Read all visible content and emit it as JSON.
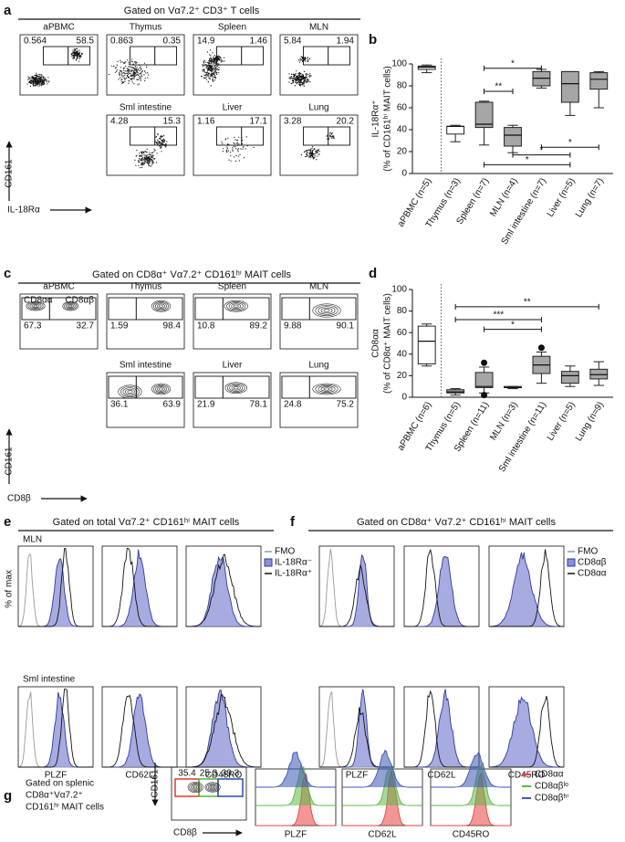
{
  "panel_labels": [
    "a",
    "b",
    "c",
    "d",
    "e",
    "f",
    "g"
  ],
  "a": {
    "title": "Gated on Vα7.2⁺ CD3⁺ T cells",
    "y_axis": "CD161",
    "x_axis": "IL-18Rα",
    "plots": [
      {
        "name": "aPBMC",
        "gates": [
          "0.564",
          "58.5"
        ]
      },
      {
        "name": "Thymus",
        "gates": [
          "0.863",
          "0.35"
        ]
      },
      {
        "name": "Spleen",
        "gates": [
          "14.9",
          "1.46"
        ]
      },
      {
        "name": "MLN",
        "gates": [
          "5.84",
          "1.94"
        ]
      },
      {
        "name": "Sml intestine",
        "gates": [
          "4.28",
          "15.3"
        ]
      },
      {
        "name": "Liver",
        "gates": [
          "1.16",
          "17.1"
        ]
      },
      {
        "name": "Lung",
        "gates": [
          "3.28",
          "20.2"
        ]
      }
    ]
  },
  "c": {
    "title": "Gated on CD8α⁺ Vα7.2⁺ CD161ʰⁱ MAIT cells",
    "y_axis": "CD161",
    "x_axis": "CD8β",
    "subsets": [
      "CD8αα",
      "CD8αβ"
    ],
    "plots": [
      {
        "name": "aPBMC",
        "gates": [
          "67.3",
          "32.7"
        ]
      },
      {
        "name": "Thymus",
        "gates": [
          "1.59",
          "98.4"
        ]
      },
      {
        "name": "Spleen",
        "gates": [
          "10.8",
          "89.2"
        ]
      },
      {
        "name": "MLN",
        "gates": [
          "9.88",
          "90.1"
        ]
      },
      {
        "name": "Sml intestine",
        "gates": [
          "36.1",
          "63.9"
        ]
      },
      {
        "name": "Liver",
        "gates": [
          "21.9",
          "78.1"
        ]
      },
      {
        "name": "Lung",
        "gates": [
          "24.8",
          "75.2"
        ]
      }
    ]
  },
  "e": {
    "title": "Gated on total Vα7.2⁺ CD161ʰⁱ MAIT cells",
    "rows": [
      "MLN",
      "Sml intestine"
    ],
    "y_axis": "% of max",
    "markers": [
      "PLZF",
      "CD62L",
      "CD45RO"
    ],
    "legend": [
      "FMO",
      "IL-18Rα⁻",
      "IL-18Rα⁺"
    ]
  },
  "f": {
    "title": "Gated on CD8α⁺ Vα7.2⁺ CD161ʰⁱ MAIT cells",
    "markers": [
      "PLZF",
      "CD62L",
      "CD45RO"
    ],
    "legend": [
      "FMO",
      "CD8αβ",
      "CD8αα"
    ]
  },
  "g": {
    "title_lines": [
      "Gated on splenic",
      "CD8α⁺Vα7.2⁺",
      "CD161ʰⁱ MAIT cells"
    ],
    "gates": [
      "35.4",
      "25.3",
      "39.3"
    ],
    "y_axis": "CD161",
    "x_axis": "CD8β",
    "markers": [
      "PLZF",
      "CD62L",
      "CD45RO"
    ],
    "legend": [
      "CD8αα",
      "CD8αβˡᵒ",
      "CD8αβʰⁱ"
    ],
    "legend_colors": [
      "#e8423f",
      "#5bb947",
      "#3a56b0"
    ]
  },
  "chart_data": [
    {
      "type": "box",
      "ylabel": [
        "IL-18Rα⁺",
        "(% of CD161ʰⁱ MAIT cells)"
      ],
      "categories": [
        "aPBMC (n=5)",
        "Thymus (n=3)",
        "Spleen (n=7)",
        "MLN (n=4)",
        "Sml intestine (n=7)",
        "Liver (n=5)",
        "Lung (n=7)"
      ],
      "fills": [
        "#ffffff",
        "#ffffff",
        "#a6a6a6",
        "#a6a6a6",
        "#a6a6a6",
        "#a6a6a6",
        "#a6a6a6"
      ],
      "boxes": [
        {
          "min": 92,
          "q1": 95,
          "median": 97,
          "q3": 98,
          "max": 99
        },
        {
          "min": 29,
          "q1": 36,
          "median": 43,
          "q3": 43,
          "max": 44
        },
        {
          "min": 26,
          "q1": 42,
          "median": 45,
          "q3": 65,
          "max": 66
        },
        {
          "min": 19,
          "q1": 25,
          "median": 35,
          "q3": 42,
          "max": 44
        },
        {
          "min": 78,
          "q1": 80,
          "median": 87,
          "q3": 93,
          "max": 95
        },
        {
          "min": 53,
          "q1": 65,
          "median": 82,
          "q3": 93,
          "max": 93
        },
        {
          "min": 60,
          "q1": 77,
          "median": 86,
          "q3": 92,
          "max": 93
        }
      ],
      "ylim": [
        0,
        100
      ],
      "yticks": [
        0,
        20,
        40,
        60,
        80,
        100
      ],
      "brackets": [
        "*",
        "**",
        "*",
        "*",
        "*"
      ]
    },
    {
      "type": "box",
      "ylabel": [
        "CD8αα",
        "(% of CD8α⁺ MAIT cells)"
      ],
      "categories": [
        "aPBMC (n=6)",
        "Thymus (n=5)",
        "Spleen (n=11)",
        "MLN (n=3)",
        "Sml intestine (n=11)",
        "Liver (n=5)",
        "Lung (n=9)"
      ],
      "fills": [
        "#ffffff",
        "#a6a6a6",
        "#a6a6a6",
        "#a6a6a6",
        "#a6a6a6",
        "#a6a6a6",
        "#a6a6a6"
      ],
      "boxes": [
        {
          "min": 29,
          "q1": 31,
          "median": 52,
          "q3": 66,
          "max": 68
        },
        {
          "min": 2,
          "q1": 4,
          "median": 5,
          "q3": 7,
          "max": 8
        },
        {
          "min": 4,
          "q1": 9,
          "median": 10,
          "q3": 23,
          "max": 28,
          "outliers": [
            2,
            32
          ]
        },
        {
          "min": 8,
          "q1": 9,
          "median": 9,
          "q3": 10,
          "max": 10
        },
        {
          "min": 13,
          "q1": 22,
          "median": 30,
          "q3": 38,
          "max": 42,
          "outliers": [
            46
          ]
        },
        {
          "min": 10,
          "q1": 13,
          "median": 20,
          "q3": 24,
          "max": 29
        },
        {
          "min": 11,
          "q1": 17,
          "median": 21,
          "q3": 26,
          "max": 33
        }
      ],
      "ylim": [
        0,
        100
      ],
      "yticks": [
        0,
        20,
        40,
        60,
        80,
        100
      ],
      "brackets": [
        "**",
        "***",
        "*"
      ]
    }
  ]
}
